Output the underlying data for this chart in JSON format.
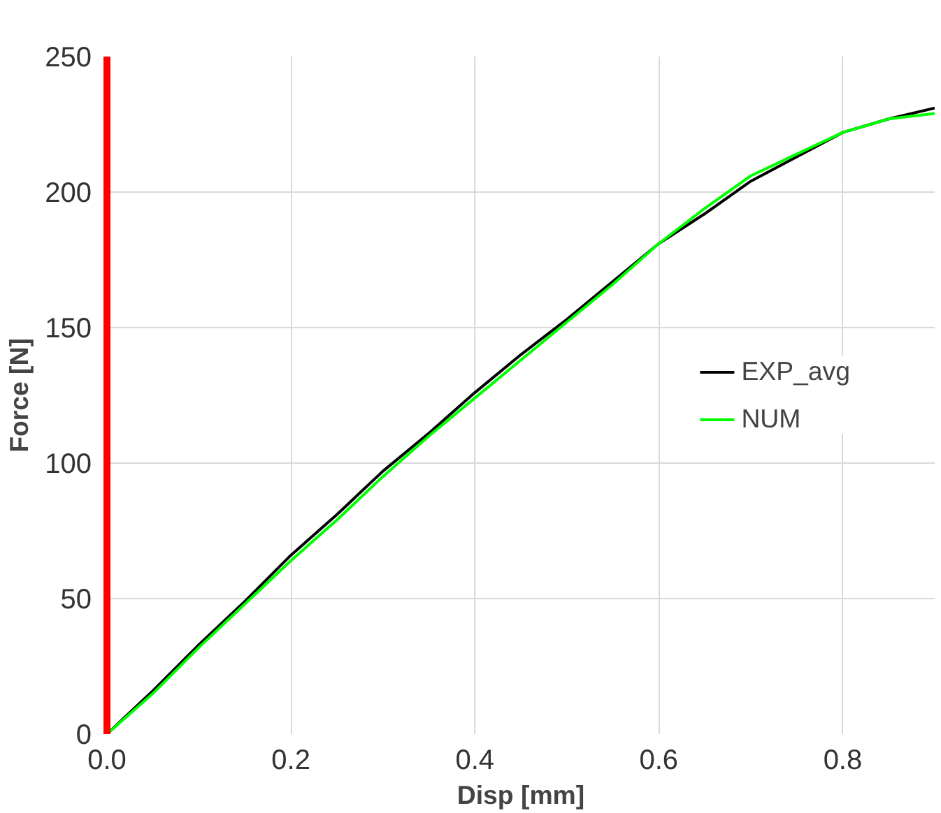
{
  "chart_data": {
    "type": "line",
    "xlabel": "Disp [mm]",
    "ylabel": "Force [N]",
    "xlim": [
      0,
      0.9
    ],
    "ylim": [
      0,
      250
    ],
    "xticks": [
      {
        "value": 0,
        "label": "0.0"
      },
      0.2,
      0.4,
      0.6,
      0.8
    ],
    "yticks": [
      0,
      50,
      100,
      150,
      200,
      250
    ],
    "grid": true,
    "legend": "right",
    "marker": "none",
    "line_style": "solid",
    "x": [
      0,
      0.05,
      0.1,
      0.15,
      0.2,
      0.25,
      0.3,
      0.35,
      0.4,
      0.45,
      0.5,
      0.55,
      0.6,
      0.65,
      0.7,
      0.75,
      0.8,
      0.85,
      0.9
    ],
    "series": [
      {
        "name": "EXP_avg",
        "color": "#000000",
        "values": [
          0,
          16,
          33,
          49,
          66,
          81,
          97,
          111,
          126,
          140,
          153,
          167,
          181,
          192,
          204,
          213,
          222,
          227,
          231
        ]
      },
      {
        "name": "NUM",
        "color": "#00ff00",
        "values": [
          0,
          15,
          32,
          48,
          64,
          79,
          95,
          110,
          124,
          138,
          152,
          166,
          181,
          194,
          206,
          214,
          222,
          227,
          229
        ]
      }
    ]
  }
}
